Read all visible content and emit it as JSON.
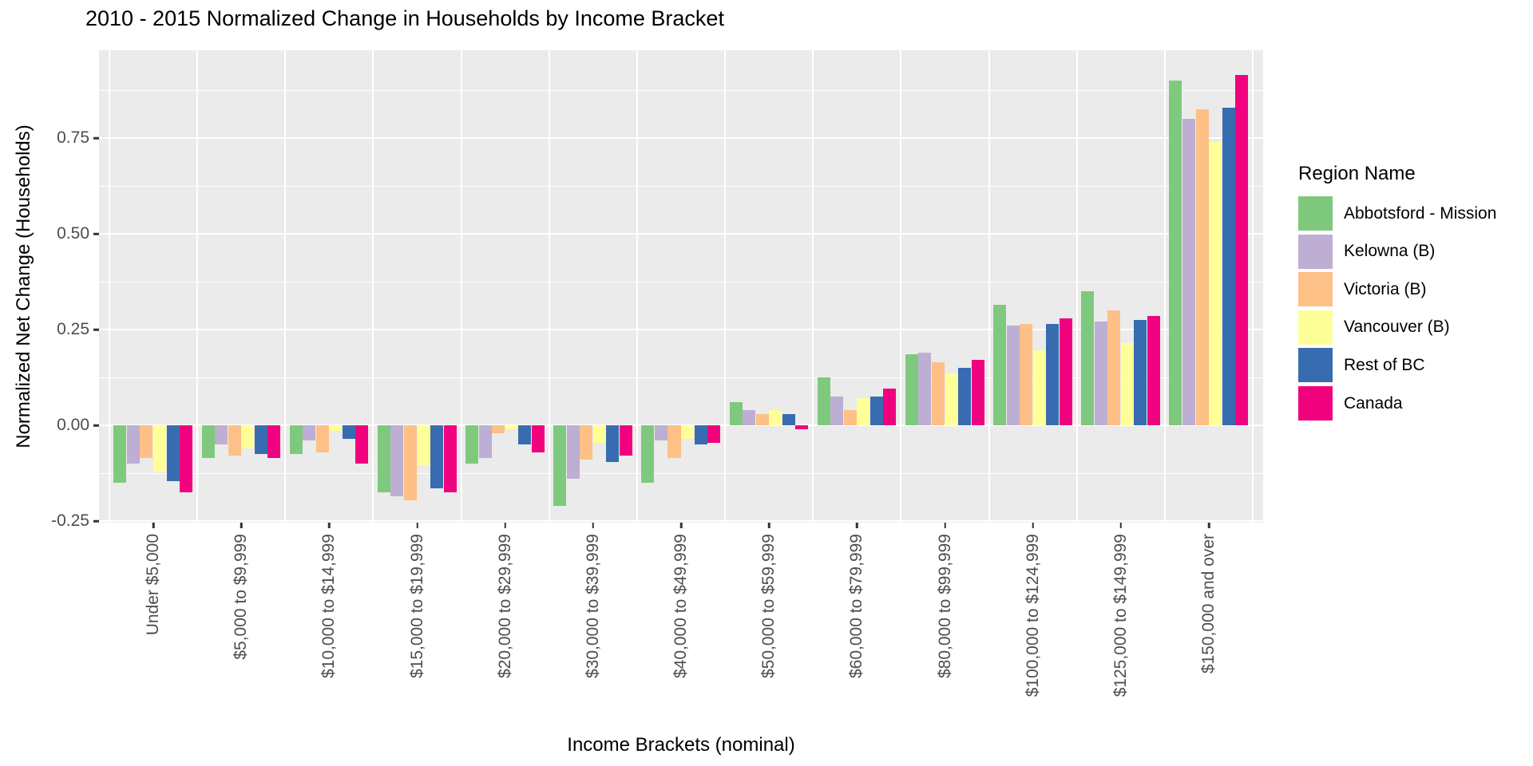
{
  "chart_data": {
    "type": "bar",
    "title": "2010 - 2015 Normalized Change in Households by Income Bracket",
    "xlabel": "Income Brackets (nominal)",
    "ylabel": "Normalized Net Change (Households)",
    "legend": {
      "title": "Region Name",
      "position": "right"
    },
    "axes": {
      "ylim": [
        -0.254,
        0.979
      ],
      "yticks": [
        -0.25,
        0.0,
        0.25,
        0.5,
        0.75
      ],
      "ytick_labels": [
        "-0.25",
        "0.00",
        "0.25",
        "0.50",
        "0.75"
      ],
      "minor_grid_step": 0.125,
      "grid": true
    },
    "categories": [
      "Under $5,000",
      "$5,000 to $9,999",
      "$10,000 to $14,999",
      "$15,000 to $19,999",
      "$20,000 to $29,999",
      "$30,000 to $39,999",
      "$40,000 to $49,999",
      "$50,000 to $59,999",
      "$60,000 to $79,999",
      "$80,000 to $99,999",
      "$100,000 to $124,999",
      "$125,000 to $149,999",
      "$150,000 and over"
    ],
    "series": [
      {
        "name": "Abbotsford - Mission",
        "color": "#7FC97F",
        "values": [
          -0.15,
          -0.085,
          -0.075,
          -0.175,
          -0.1,
          -0.21,
          -0.15,
          0.06,
          0.125,
          0.185,
          0.315,
          0.35,
          0.9
        ]
      },
      {
        "name": "Kelowna (B)",
        "color": "#BEAED4",
        "values": [
          -0.1,
          -0.05,
          -0.04,
          -0.185,
          -0.085,
          -0.14,
          -0.04,
          0.04,
          0.075,
          0.19,
          0.26,
          0.27,
          0.8
        ]
      },
      {
        "name": "Victoria (B)",
        "color": "#FDC086",
        "values": [
          -0.085,
          -0.08,
          -0.07,
          -0.195,
          -0.02,
          -0.09,
          -0.085,
          0.03,
          0.04,
          0.165,
          0.265,
          0.3,
          0.825
        ]
      },
      {
        "name": "Vancouver (B)",
        "color": "#FFFF99",
        "values": [
          -0.12,
          -0.06,
          -0.015,
          -0.105,
          -0.01,
          -0.045,
          -0.035,
          0.04,
          0.07,
          0.135,
          0.195,
          0.215,
          0.74
        ]
      },
      {
        "name": "Rest of BC",
        "color": "#386CB0",
        "values": [
          -0.145,
          -0.075,
          -0.035,
          -0.165,
          -0.05,
          -0.095,
          -0.05,
          0.03,
          0.075,
          0.15,
          0.265,
          0.275,
          0.83
        ]
      },
      {
        "name": "Canada",
        "color": "#F0027F",
        "values": [
          -0.175,
          -0.085,
          -0.1,
          -0.175,
          -0.07,
          -0.08,
          -0.045,
          -0.01,
          0.095,
          0.17,
          0.28,
          0.285,
          0.915
        ]
      }
    ],
    "style": {
      "panel_bg": "#EBEBEB",
      "grid_color": "#FFFFFF",
      "tick_mark_color": "#333333",
      "tick_label_color": "#4D4D4D",
      "bar_group_width": 0.9
    }
  }
}
